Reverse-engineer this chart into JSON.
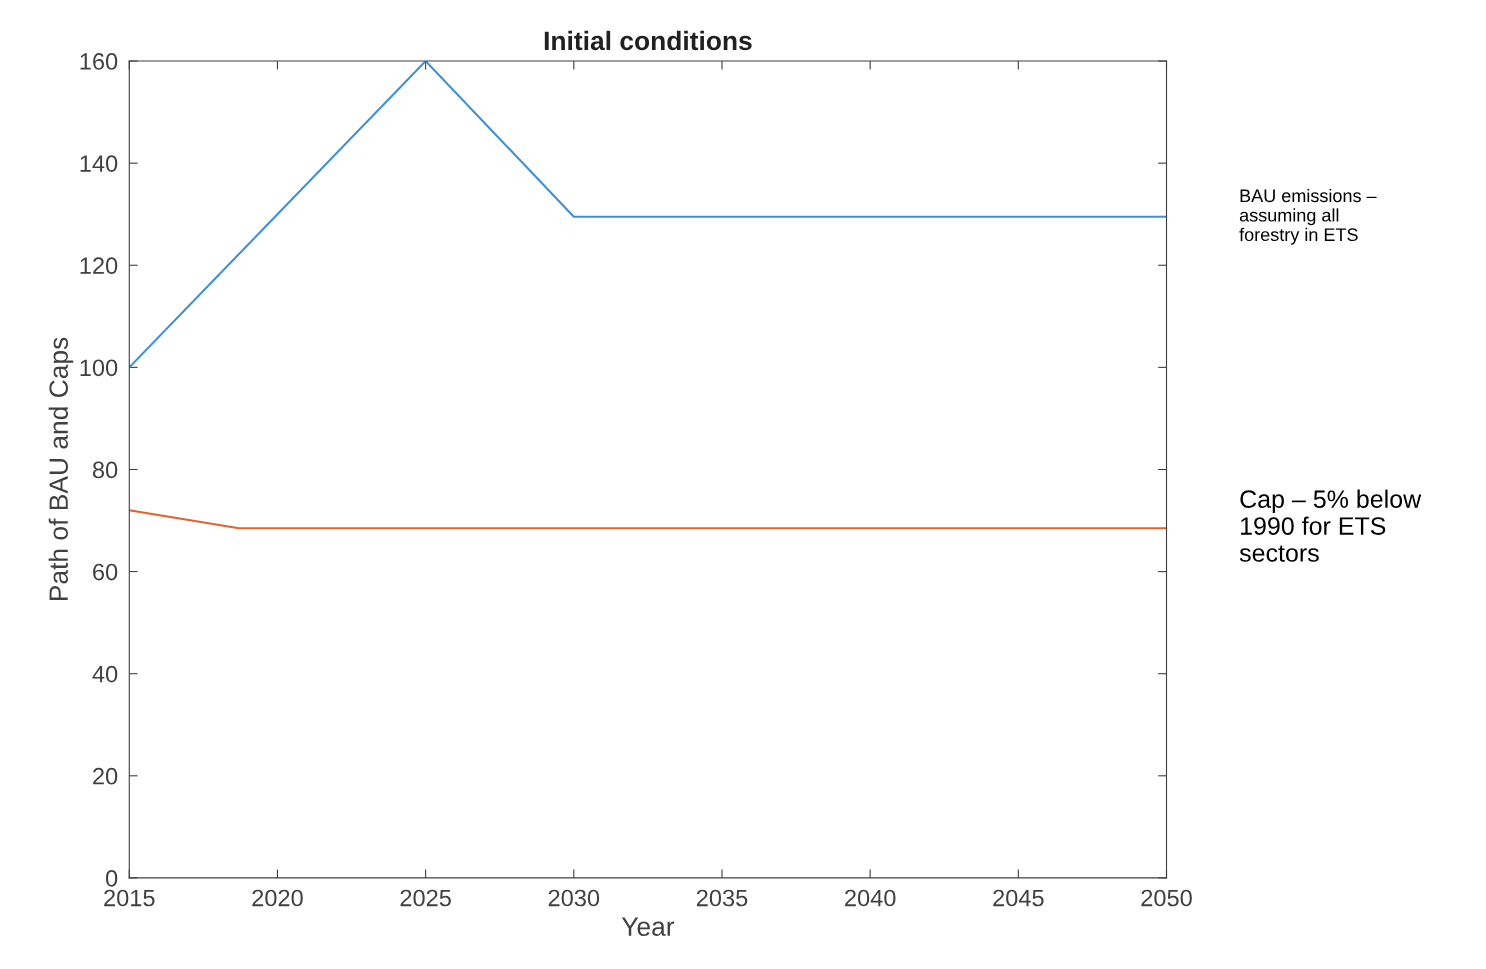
{
  "chart_data": {
    "type": "line",
    "title": "Initial conditions",
    "xlabel": "Year",
    "ylabel": "Path of BAU and Caps",
    "series": [
      {
        "name": "BAU emissions –\nassuming all\nforestry in ETS",
        "color": "#3d8fd6",
        "x": [
          2015,
          2025,
          2030,
          2050
        ],
        "values": [
          100,
          160,
          129.5,
          129.5
        ]
      },
      {
        "name": "Cap – 5% below\n1990 for ETS\nsectors",
        "color": "#e0642a",
        "x": [
          2015,
          2018.7,
          2050
        ],
        "values": [
          72,
          68.5,
          68.5
        ]
      }
    ],
    "xlim": [
      2015,
      2050
    ],
    "xticks": [
      2015,
      2020,
      2025,
      2030,
      2035,
      2040,
      2045,
      2050
    ],
    "ylim": [
      0,
      160
    ],
    "yticks": [
      0,
      20,
      40,
      60,
      80,
      100,
      120,
      140,
      160
    ],
    "grid": false,
    "legend": false,
    "marker": "none",
    "line_style": "solid"
  }
}
